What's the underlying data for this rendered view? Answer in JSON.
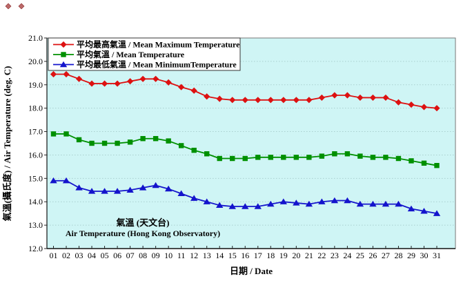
{
  "chart_data": {
    "type": "line",
    "title": "",
    "xlabel": "日期 / Date",
    "ylabel": "氣溫(攝氏度) / Air Temperature (deg. C)",
    "ylim": [
      12.0,
      21.0
    ],
    "y_tick_step": 1.0,
    "grid": "horizontal-dashed",
    "legend_position": "top-left-inside",
    "x_tick_labels": [
      "01",
      "02",
      "03",
      "04",
      "05",
      "06",
      "07",
      "08",
      "09",
      "10",
      "11",
      "12",
      "13",
      "14",
      "15",
      "16",
      "17",
      "18",
      "19",
      "20",
      "21",
      "22",
      "23",
      "24",
      "25",
      "26",
      "27",
      "28",
      "29",
      "30",
      "31"
    ],
    "y_tick_labels": [
      "21.0",
      "20.0",
      "19.0",
      "18.0",
      "17.0",
      "16.0",
      "15.0",
      "14.0",
      "13.0",
      "12.0"
    ],
    "series": [
      {
        "id": "mean-maximum-temperature",
        "label": "平均最高氣溫 / Mean Maximum Temperature",
        "color": "#DD1111",
        "marker": "diamond",
        "values": [
          19.45,
          19.45,
          19.25,
          19.05,
          19.05,
          19.05,
          19.15,
          19.25,
          19.25,
          19.1,
          18.9,
          18.75,
          18.5,
          18.4,
          18.35,
          18.35,
          18.35,
          18.35,
          18.35,
          18.35,
          18.35,
          18.45,
          18.55,
          18.55,
          18.45,
          18.45,
          18.45,
          18.25,
          18.15,
          18.05,
          18.0
        ]
      },
      {
        "id": "mean-temperature",
        "label": "平均氣溫 / Mean Temperature",
        "color": "#009000",
        "marker": "square",
        "values": [
          16.9,
          16.9,
          16.65,
          16.5,
          16.5,
          16.5,
          16.55,
          16.7,
          16.7,
          16.6,
          16.4,
          16.2,
          16.05,
          15.85,
          15.85,
          15.85,
          15.9,
          15.9,
          15.9,
          15.9,
          15.9,
          15.95,
          16.05,
          16.05,
          15.95,
          15.9,
          15.9,
          15.85,
          15.75,
          15.65,
          15.55
        ]
      },
      {
        "id": "mean-minimum-temperature",
        "label": "平均最低氣溫 / Mean MinimumTemperature",
        "color": "#1414CC",
        "marker": "triangle",
        "values": [
          14.9,
          14.9,
          14.6,
          14.45,
          14.45,
          14.45,
          14.5,
          14.6,
          14.7,
          14.55,
          14.35,
          14.15,
          14.0,
          13.85,
          13.8,
          13.8,
          13.8,
          13.9,
          14.0,
          13.95,
          13.9,
          14.0,
          14.05,
          14.05,
          13.9,
          13.9,
          13.9,
          13.9,
          13.7,
          13.6,
          13.5
        ]
      }
    ],
    "annotation": {
      "lines": [
        "氣溫 (天文台)",
        "Air Temperature (Hong Kong Observatory)"
      ],
      "color": "#A02020"
    },
    "colors": {
      "plot_background": "#CFF5F5",
      "gridline": "#A9CFCE",
      "axis": "#111111",
      "legend_border": "#333333",
      "legend_background": "#FFFFFF"
    }
  }
}
